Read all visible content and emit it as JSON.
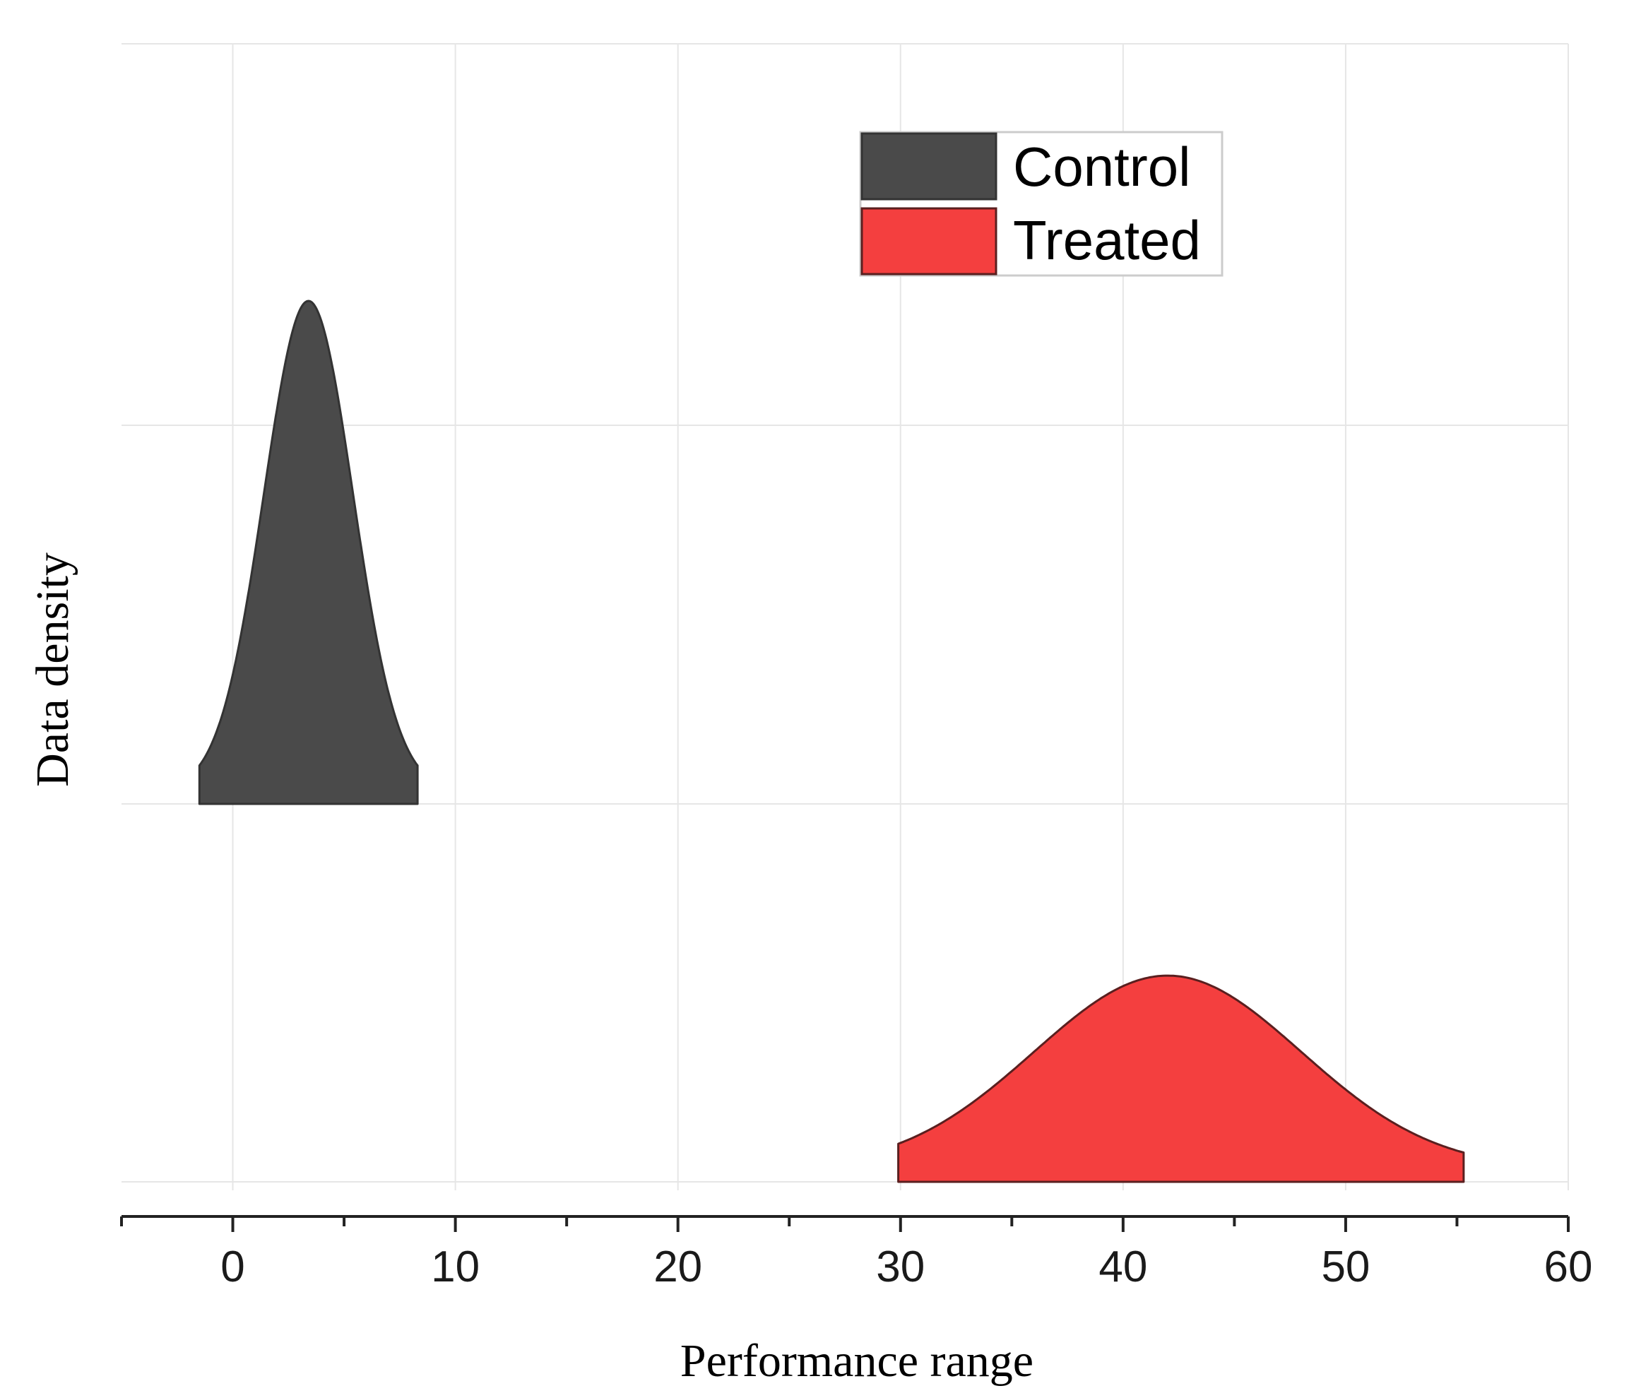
{
  "chart_data": {
    "type": "ridgeline",
    "xlabel": "Performance range",
    "ylabel": "Data density",
    "xlim": [
      -5,
      60
    ],
    "xticks": [
      0,
      10,
      20,
      30,
      40,
      50,
      60
    ],
    "x_minor_step": 5,
    "grid": true,
    "legend_position": "top-right",
    "series": [
      {
        "name": "Control",
        "color": "#4a4a4a",
        "stroke": "#333333",
        "x_range": [
          -1.5,
          8.3
        ],
        "peak_x": 3.4,
        "sd": 2.0,
        "relative_height": 1.0
      },
      {
        "name": "Treated",
        "color": "#f43f3f",
        "stroke": "#5a1f1f",
        "x_range": [
          29.9,
          55.3
        ],
        "peak_x": 42.0,
        "sd": 6.0,
        "relative_height": 0.41
      }
    ]
  }
}
